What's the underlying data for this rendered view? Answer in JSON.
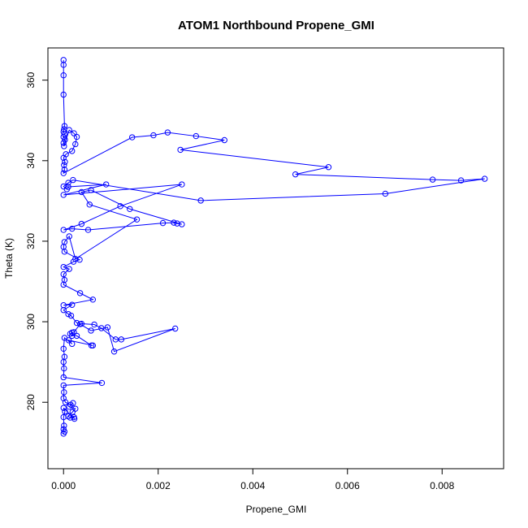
{
  "chart_data": {
    "type": "line",
    "title": "ATOM1 Northbound Propene_GMI",
    "xlabel": "Propene_GMI",
    "ylabel": "Theta (K)",
    "xlim": [
      -0.00033,
      0.0093
    ],
    "ylim": [
      263.5,
      368
    ],
    "x_ticks": [
      0.0,
      0.002,
      0.004,
      0.006,
      0.008
    ],
    "x_tick_labels": [
      "0.000",
      "0.002",
      "0.004",
      "0.006",
      "0.008"
    ],
    "y_ticks": [
      280,
      300,
      320,
      340,
      360
    ],
    "y_tick_labels": [
      "280",
      "300",
      "320",
      "340",
      "360"
    ],
    "grid": false,
    "legend": "none",
    "series_color": "#0000ff",
    "series": [
      {
        "points": [
          [
            0.0,
            365.0
          ],
          [
            0.0,
            363.8
          ],
          [
            0.0,
            361.2
          ],
          [
            0.0,
            356.4
          ],
          [
            2e-05,
            348.6
          ],
          [
            1e-05,
            347.8
          ],
          [
            0.0,
            347.2
          ],
          [
            2e-05,
            346.6
          ],
          [
            0.0,
            345.9
          ],
          [
            3e-05,
            345.2
          ],
          [
            0.0,
            344.4
          ],
          [
            1e-05,
            343.6
          ],
          [
            0.00012,
            347.6
          ],
          [
            0.00022,
            346.8
          ],
          [
            0.00028,
            345.9
          ],
          [
            0.00025,
            344.1
          ],
          [
            0.00018,
            342.4
          ],
          [
            5e-05,
            341.6
          ],
          [
            0.0,
            340.7
          ],
          [
            3e-05,
            339.7
          ],
          [
            1e-05,
            338.9
          ],
          [
            2e-05,
            337.8
          ],
          [
            0.0,
            336.9
          ],
          [
            0.00145,
            345.8
          ],
          [
            0.0019,
            346.3
          ],
          [
            0.0022,
            347.0
          ],
          [
            0.0028,
            346.1
          ],
          [
            0.0034,
            345.1
          ],
          [
            0.00247,
            342.7
          ],
          [
            0.0056,
            338.4
          ],
          [
            0.0049,
            336.6
          ],
          [
            0.0078,
            335.3
          ],
          [
            0.0084,
            335.1
          ],
          [
            0.0089,
            335.5
          ],
          [
            0.0068,
            331.8
          ],
          [
            0.0029,
            330.1
          ],
          [
            0.0002,
            335.2
          ],
          [
            0.0001,
            334.5
          ],
          [
            0.0,
            333.6
          ],
          [
            7e-05,
            332.9
          ],
          [
            0.0001,
            333.5
          ],
          [
            0.0009,
            334.1
          ],
          [
            0.0,
            331.5
          ],
          [
            0.0025,
            334.1
          ],
          [
            0.0012,
            328.7
          ],
          [
            0.00038,
            324.3
          ],
          [
            0.0,
            322.8
          ],
          [
            0.00018,
            323.1
          ],
          [
            0.00052,
            322.8
          ],
          [
            0.0021,
            324.5
          ],
          [
            0.00233,
            324.6
          ],
          [
            0.0024,
            324.4
          ],
          [
            0.0025,
            324.2
          ],
          [
            0.0014,
            328.0
          ],
          [
            0.00058,
            332.7
          ],
          [
            0.00038,
            332.2
          ],
          [
            0.00055,
            329.1
          ],
          [
            0.00155,
            325.4
          ],
          [
            0.00025,
            315.6
          ],
          [
            0.00012,
            321.2
          ],
          [
            2e-05,
            319.8
          ],
          [
            0.0,
            318.6
          ],
          [
            2e-05,
            317.4
          ],
          [
            0.00034,
            315.4
          ],
          [
            0.00021,
            314.9
          ],
          [
            0.0,
            313.6
          ],
          [
            0.00012,
            313.1
          ],
          [
            0.0,
            311.8
          ],
          [
            2e-05,
            310.4
          ],
          [
            0.0,
            309.2
          ],
          [
            0.00035,
            307.1
          ],
          [
            0.00062,
            305.5
          ],
          [
            0.0,
            304.1
          ],
          [
            0.00018,
            304.2
          ],
          [
            0.0,
            302.9
          ],
          [
            0.0001,
            301.9
          ],
          [
            0.00016,
            301.5
          ],
          [
            0.00028,
            299.7
          ],
          [
            0.00038,
            299.5
          ],
          [
            0.00065,
            299.3
          ],
          [
            0.0008,
            298.4
          ],
          [
            0.0011,
            295.6
          ],
          [
            0.00122,
            295.6
          ],
          [
            0.00236,
            298.3
          ],
          [
            0.00107,
            292.6
          ],
          [
            0.00093,
            298.6
          ],
          [
            0.00058,
            297.8
          ],
          [
            0.00035,
            299.4
          ],
          [
            0.00022,
            297.4
          ],
          [
            0.00018,
            297.3
          ],
          [
            0.00014,
            297.0
          ],
          [
            0.00018,
            296.5
          ],
          [
            0.00028,
            296.5
          ],
          [
            0.00059,
            294.1
          ],
          [
            0.00062,
            294.1
          ],
          [
            0.00011,
            295.4
          ],
          [
            0.00018,
            294.5
          ],
          [
            2e-05,
            296.0
          ],
          [
            0.0,
            293.3
          ],
          [
            2e-05,
            291.3
          ],
          [
            0.0,
            290.0
          ],
          [
            1e-05,
            288.4
          ],
          [
            0.0,
            286.2
          ],
          [
            0.00081,
            284.8
          ],
          [
            0.0,
            284.2
          ],
          [
            1e-05,
            282.5
          ],
          [
            0.0,
            281.0
          ],
          [
            4e-05,
            280.0
          ],
          [
            0.00015,
            279.4
          ],
          [
            0.0002,
            279.8
          ],
          [
            0.00012,
            278.9
          ],
          [
            0.00025,
            278.4
          ],
          [
            0.00019,
            277.6
          ],
          [
            0.0001,
            276.5
          ],
          [
            0.00014,
            276.2
          ],
          [
            0.00022,
            276.3
          ],
          [
            0.00023,
            275.9
          ],
          [
            0.0,
            278.6
          ],
          [
            3e-05,
            277.7
          ],
          [
            0.0,
            276.3
          ],
          [
            1e-05,
            274.2
          ],
          [
            0.0,
            273.3
          ],
          [
            2e-05,
            272.7
          ],
          [
            0.0,
            272.2
          ]
        ]
      }
    ]
  }
}
